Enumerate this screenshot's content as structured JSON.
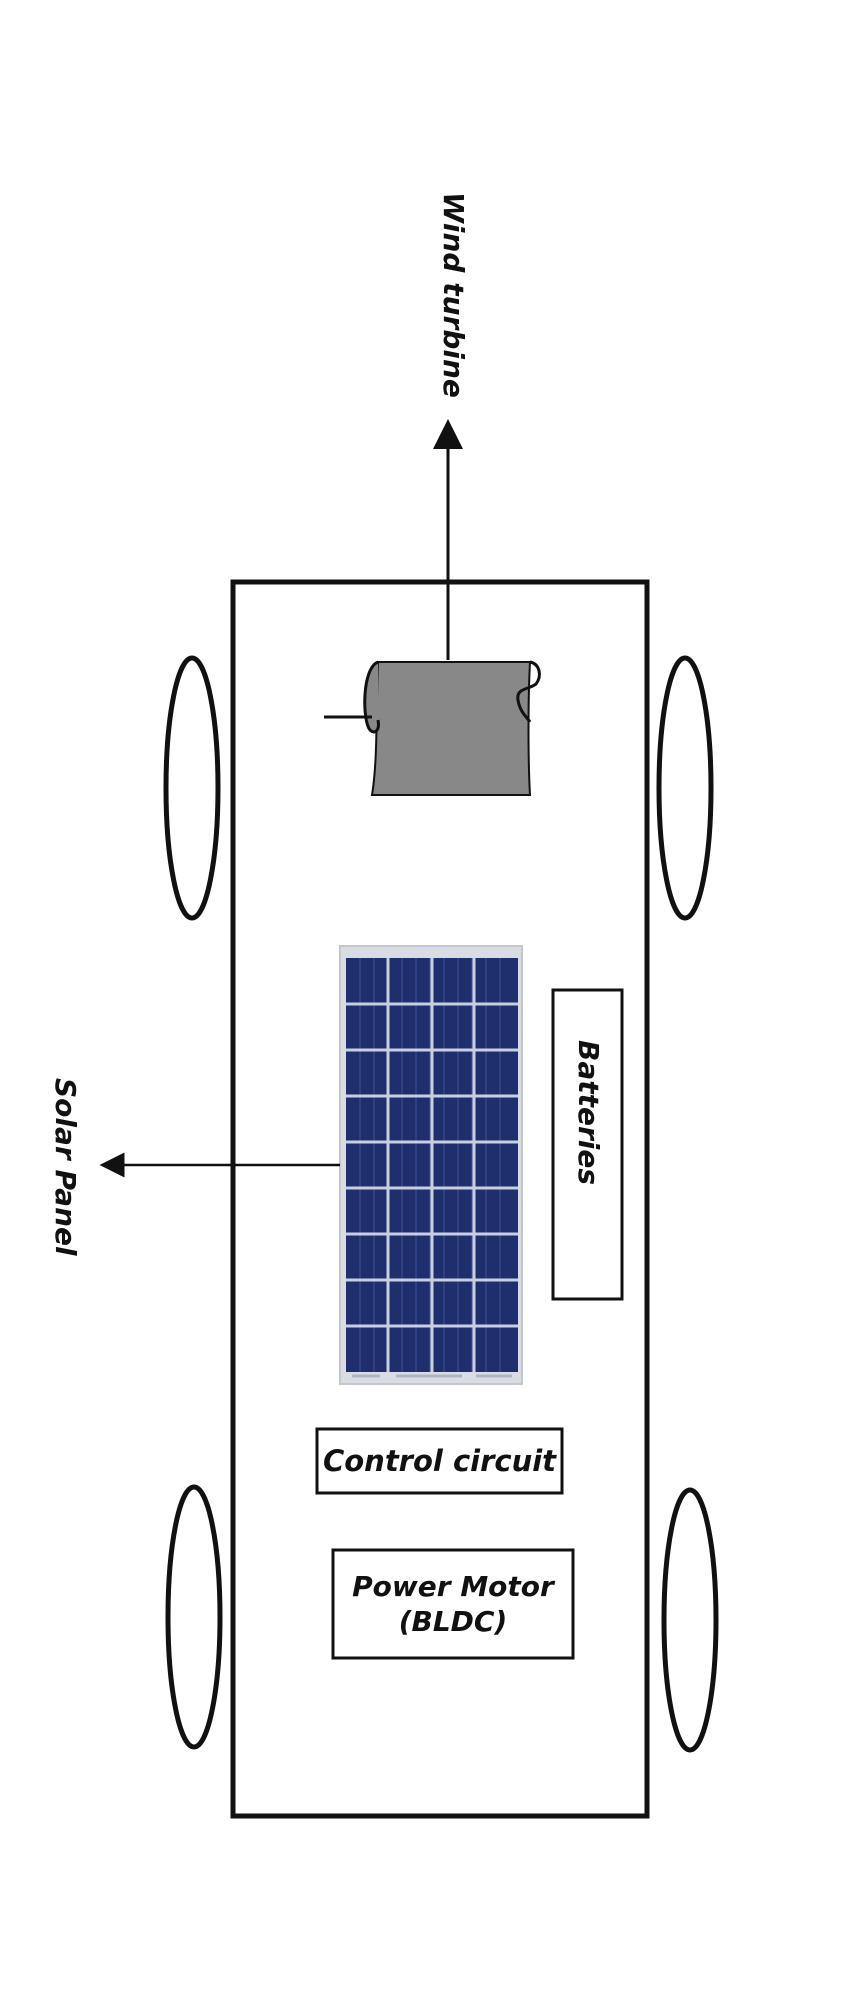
{
  "labels": {
    "wind_turbine": "Wind turbine",
    "solar_panel": "Solar Panel",
    "batteries": "Batteries",
    "control_circuit": "Control circuit",
    "power_motor_line1": "Power Motor",
    "power_motor_line2": "(BLDC)"
  },
  "colors": {
    "outline": "#111111",
    "turbine_fill": "#888888",
    "panel_frame": "#d9dde3",
    "panel_cell": "#1f2f6e",
    "panel_cell_line": "#3a4d8f"
  }
}
